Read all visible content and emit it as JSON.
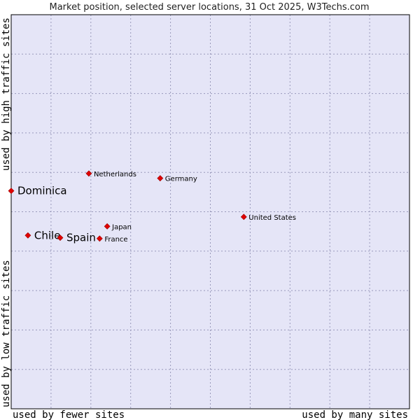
{
  "chart_data": {
    "type": "scatter",
    "title": "Market position, selected server locations, 31 Oct 2025, W3Techs.com",
    "xlabel_left": "used by fewer sites",
    "xlabel_right": "used by many sites",
    "ylabel_bottom": "used by low traffic sites",
    "ylabel_top": "used by high traffic sites",
    "xlim": [
      0,
      100
    ],
    "ylim": [
      0,
      100
    ],
    "grid": true,
    "colors": {
      "plot_background": "#e5e5f7",
      "border": "#000000",
      "marker": "#e00000",
      "grid": "#9999bb"
    },
    "points": [
      {
        "name": "Dominica",
        "x": 0.0,
        "y": 55.3,
        "highlight": true
      },
      {
        "name": "Chile",
        "x": 4.2,
        "y": 44.0,
        "highlight": true
      },
      {
        "name": "Spain",
        "x": 12.3,
        "y": 43.4,
        "highlight": true
      },
      {
        "name": "Netherlands",
        "x": 19.5,
        "y": 59.7,
        "highlight": false
      },
      {
        "name": "Germany",
        "x": 37.4,
        "y": 58.5,
        "highlight": false
      },
      {
        "name": "Japan",
        "x": 24.1,
        "y": 46.3,
        "highlight": false
      },
      {
        "name": "France",
        "x": 22.2,
        "y": 43.2,
        "highlight": false
      },
      {
        "name": "United States",
        "x": 58.4,
        "y": 48.7,
        "highlight": false
      }
    ]
  }
}
